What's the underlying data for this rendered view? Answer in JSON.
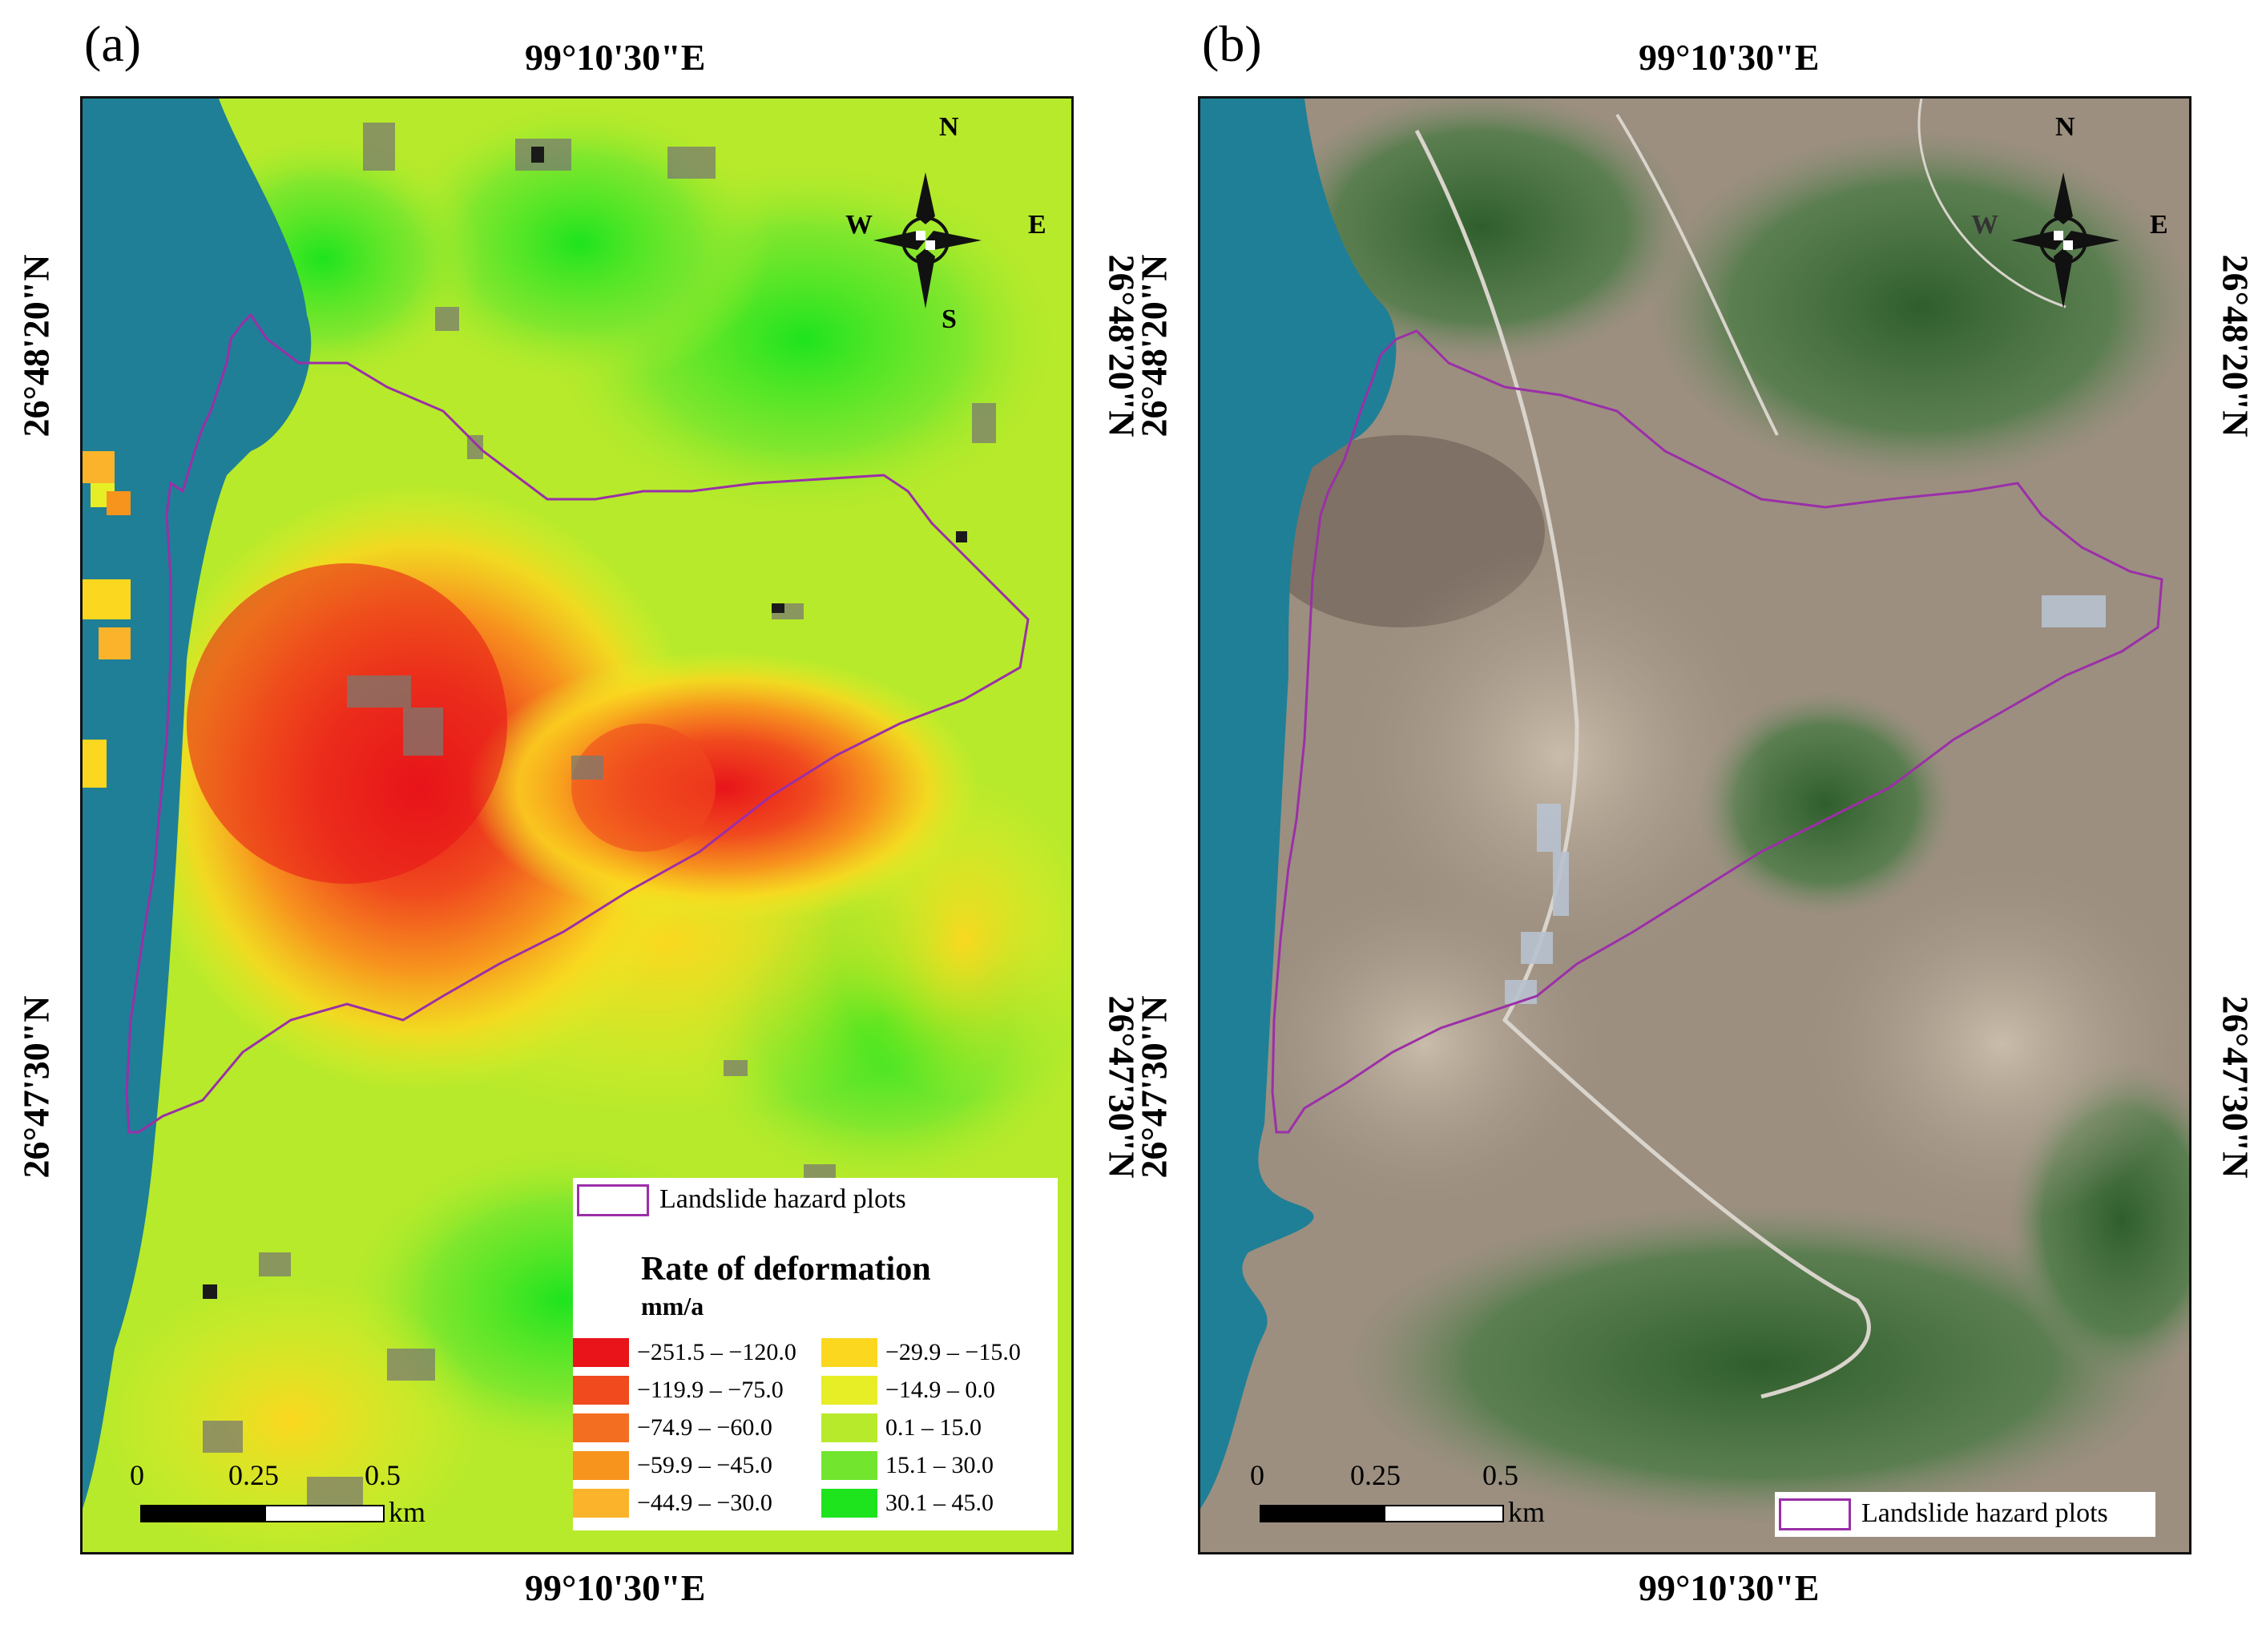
{
  "panels": {
    "a": {
      "label": "(a)"
    },
    "b": {
      "label": "(b)"
    }
  },
  "coords": {
    "lon": "99°10'30\"E",
    "lat_top": "26°48'20\"N",
    "lat_bottom": "26°47'30\"N"
  },
  "compass": {
    "n": "N",
    "s": "S",
    "e": "E",
    "w": "W"
  },
  "scale": {
    "ticks": [
      "0",
      "0.25",
      "0.5"
    ],
    "unit": "km"
  },
  "legend": {
    "plots_label": "Landslide hazard  plots",
    "title": "Rate of deformation",
    "unit": "mm/a",
    "classes": [
      {
        "label": "−251.5 – −120.0",
        "color": "#e8141a"
      },
      {
        "label": "−119.9 – −75.0",
        "color": "#f04a1e"
      },
      {
        "label": "−74.9 – −60.0",
        "color": "#f46e22"
      },
      {
        "label": "−59.9 – −45.0",
        "color": "#f7941e"
      },
      {
        "label": "−44.9 – −30.0",
        "color": "#fab32b"
      },
      {
        "label": "−29.9 – −15.0",
        "color": "#fbd71f"
      },
      {
        "label": "−14.9 – 0.0",
        "color": "#e7ee25"
      },
      {
        "label": "0.1 – 15.0",
        "color": "#b7ea2b"
      },
      {
        "label": "15.1 – 30.0",
        "color": "#72e62e"
      },
      {
        "label": "30.1 – 45.0",
        "color": "#1ee41e"
      }
    ]
  },
  "colors": {
    "boundary": "#9b2fa8",
    "water": "#1f7f96",
    "terrain": "#a89a8a",
    "forest": "#3e6e3a"
  }
}
